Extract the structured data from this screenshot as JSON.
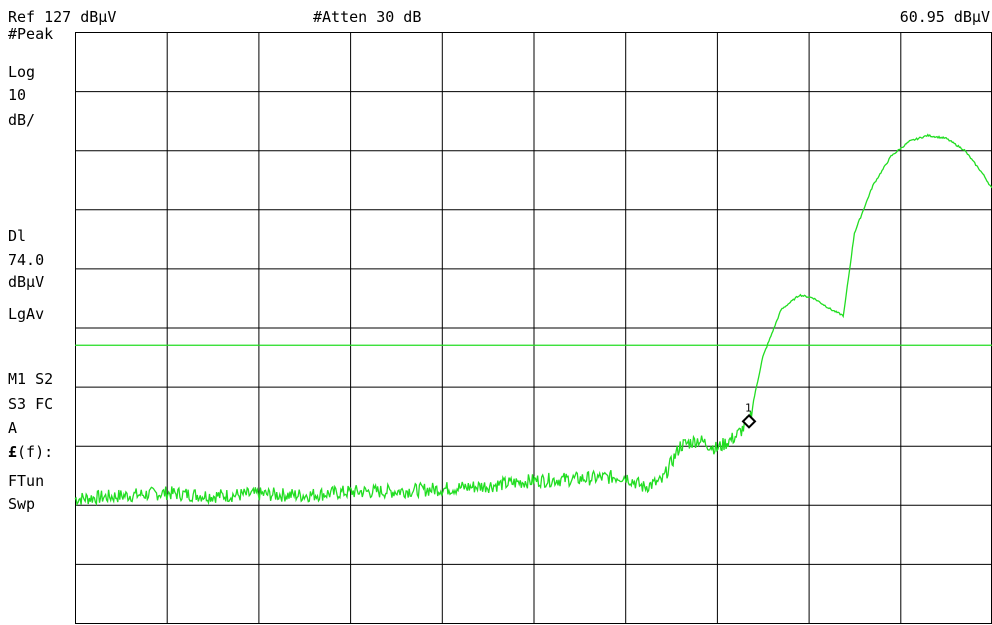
{
  "header": {
    "ref_level": "Ref 127 dBμV",
    "attenuation": "#Atten 30 dB",
    "marker_readout": "60.95 dBμV"
  },
  "left_panel": {
    "detector": "#Peak",
    "scale_type": "Log",
    "scale_value": "10",
    "scale_unit": "dB/",
    "display_line_label": "Dl",
    "display_line_value": "74.0",
    "display_line_unit": "dBμV",
    "average_mode": "LgAv",
    "trace_flags_1": "M1  S2",
    "trace_flags_2": "S3  FC",
    "trace_flags_3": "A",
    "freq_function_symbol": "£",
    "freq_function_rest": "(f):",
    "ftun": "FTun",
    "swp": "Swp"
  },
  "marker": {
    "label": "1"
  },
  "colors": {
    "trace": "#22dd22",
    "display_line": "#22dd22",
    "grid": "#000000",
    "marker": "#000000"
  },
  "chart_data": {
    "type": "line",
    "reference_level_dBuV": 127,
    "scale_dB_per_div": 10,
    "divisions": {
      "x": 10,
      "y": 10
    },
    "display_line_dBuV": 74.0,
    "series": [
      {
        "x_fraction": [
          0.0,
          0.05,
          0.1,
          0.15,
          0.2,
          0.25,
          0.3,
          0.35,
          0.4,
          0.45,
          0.5,
          0.55,
          0.6,
          0.62,
          0.64,
          0.66,
          0.68,
          0.7,
          0.72,
          0.735,
          0.75,
          0.77,
          0.79,
          0.805,
          0.825,
          0.838,
          0.85,
          0.87,
          0.89,
          0.91,
          0.93,
          0.95,
          0.97,
          0.99,
          1.0
        ],
        "y_dBuV": [
          48.0,
          48.5,
          49.0,
          48.5,
          48.8,
          48.6,
          49.2,
          49.3,
          49.7,
          50.2,
          51.1,
          51.4,
          51.8,
          50.0,
          51.0,
          57.0,
          58.0,
          56.5,
          58.5,
          60.95,
          72.0,
          80.0,
          82.5,
          82.0,
          80.0,
          79.0,
          93.0,
          101.0,
          106.0,
          108.5,
          109.5,
          109.0,
          107.0,
          103.0,
          100.5
        ]
      }
    ],
    "marker": {
      "index": 1,
      "x_fraction": 0.735,
      "y_dBuV": 60.95
    }
  }
}
